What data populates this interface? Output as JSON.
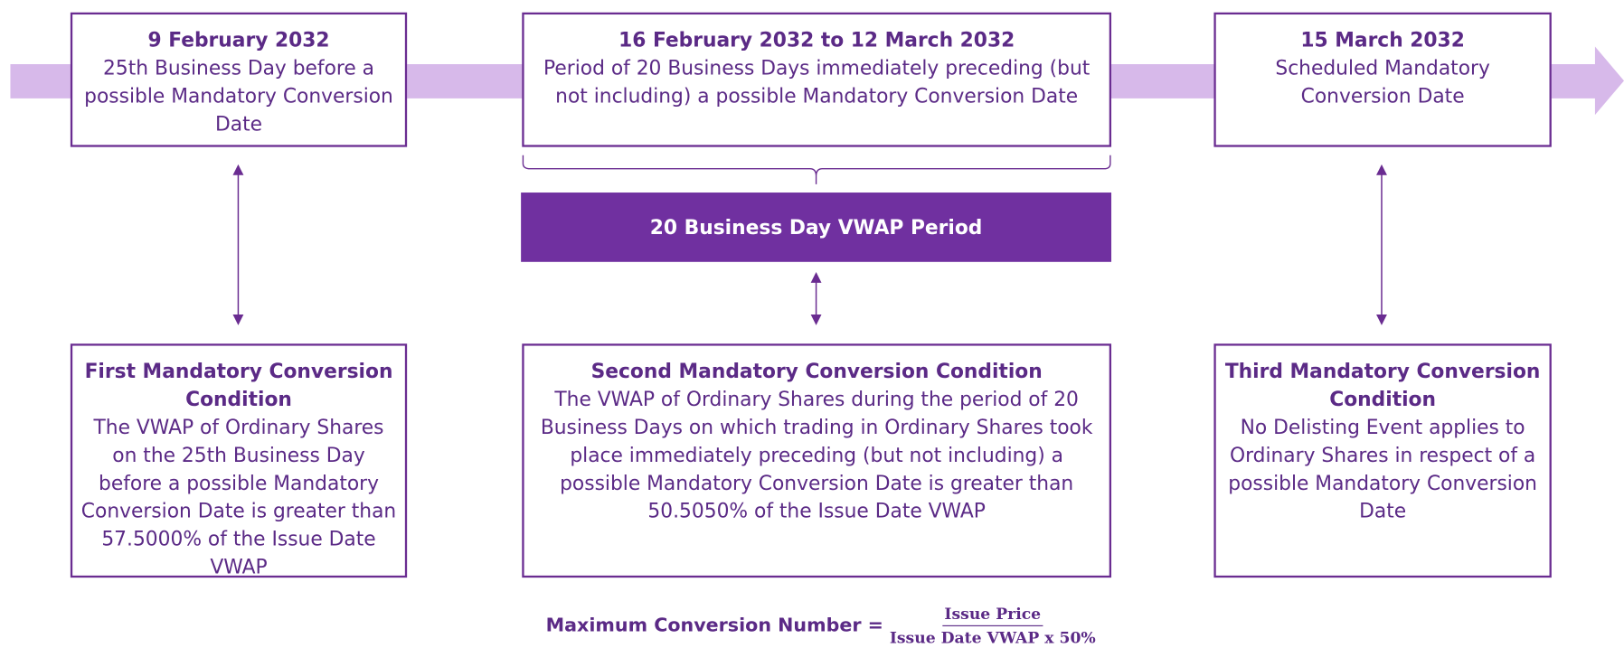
{
  "timeline": [
    {
      "date": "9 February 2032",
      "text": "25th Business Day before a possible Mandatory Conversion Date"
    },
    {
      "date": "16 February 2032 to 12 March 2032",
      "text": "Period of 20 Business Days immediately preceding (but not including) a possible Mandatory Conversion Date"
    },
    {
      "date": "15 March 2032",
      "text": "Scheduled Mandatory Conversion Date"
    }
  ],
  "vwap_period": "20 Business Day VWAP Period",
  "conditions": [
    {
      "title": "First Mandatory Conversion Condition",
      "text": "The VWAP of Ordinary Shares on the 25th Business Day before a possible Mandatory Conversion Date is greater than 57.5000% of the Issue Date VWAP"
    },
    {
      "title": "Second Mandatory Conversion Condition",
      "text": "The VWAP of Ordinary Shares during the period of 20 Business Days on which trading in Ordinary Shares took place immediately preceding (but not including) a possible Mandatory Conversion Date is greater than 50.5050% of the Issue Date VWAP"
    },
    {
      "title": "Third Mandatory Conversion Condition",
      "text": "No Delisting Event applies to Ordinary Shares in respect of a possible Mandatory Conversion Date"
    }
  ],
  "formula": {
    "label": "Maximum Conversion Number =",
    "numerator": "Issue Price",
    "denominator": "Issue Date VWAP x 50%"
  }
}
